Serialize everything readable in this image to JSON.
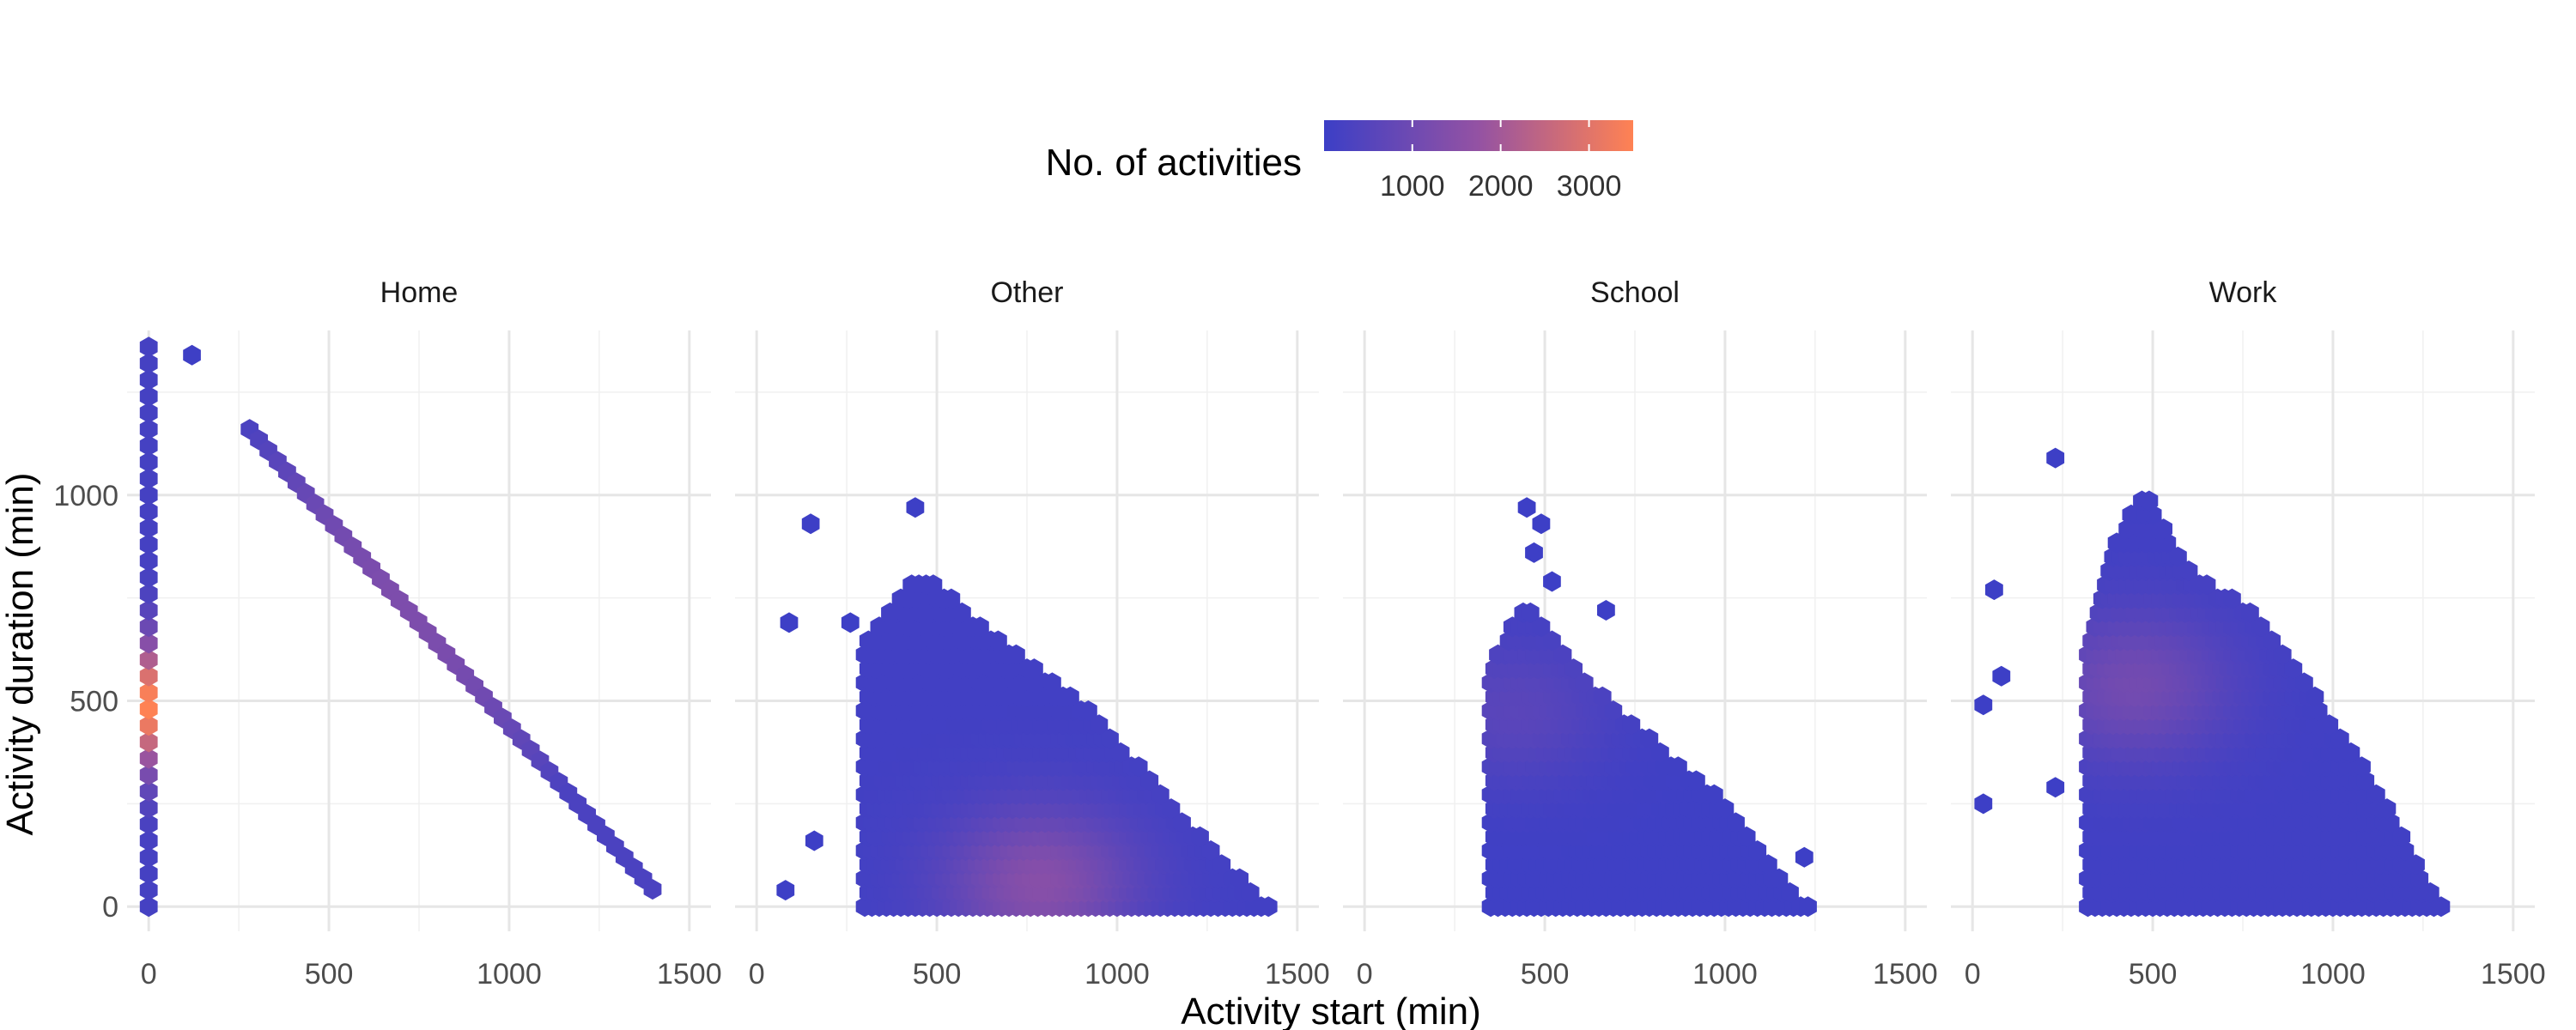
{
  "chart_data": {
    "type": "hexbin",
    "x_label": "Activity start (min)",
    "y_label": "Activity duration (min)",
    "x_range": [
      -60,
      1560
    ],
    "y_range": [
      -60,
      1400
    ],
    "x_ticks": [
      0,
      500,
      1000,
      1500
    ],
    "y_ticks": [
      0,
      500,
      1000
    ],
    "legend": {
      "title": "No. of activities",
      "position": "top",
      "range": [
        1,
        3500
      ],
      "ticks": [
        1000,
        2000,
        3000
      ],
      "color_low": "#3c3fc6",
      "color_mid": "#9452a3",
      "color_high": "#ff8253"
    },
    "panels": [
      {
        "label": "Home",
        "vertical_column": {
          "x": 0,
          "y_min": 0,
          "y_max": 1380,
          "step": 40,
          "peak_y": 490,
          "peak_count": 3500,
          "base_count": 180
        },
        "isolated_points": [
          {
            "x": 120,
            "y": 1340,
            "count": 40
          }
        ],
        "diagonal_line": {
          "x_start": 280,
          "x_end": 1420,
          "step": 26,
          "rule": "duration = 1440 - start",
          "count_low": 300,
          "count_high": 1300
        }
      },
      {
        "label": "Other",
        "mass": {
          "x_min": 300,
          "x_max": 1420,
          "upper_edge": [
            [
              300,
              640
            ],
            [
              450,
              820
            ],
            [
              600,
              700
            ],
            [
              900,
              500
            ],
            [
              1200,
              200
            ],
            [
              1420,
              0
            ]
          ],
          "hotspot": [
            800,
            60
          ],
          "hotspot_count": 1500,
          "base_count": 120
        },
        "isolated_points": [
          {
            "x": 150,
            "y": 930,
            "count": 20
          },
          {
            "x": 90,
            "y": 690,
            "count": 20
          },
          {
            "x": 160,
            "y": 160,
            "count": 20
          },
          {
            "x": 80,
            "y": 40,
            "count": 20
          },
          {
            "x": 260,
            "y": 690,
            "count": 20
          },
          {
            "x": 440,
            "y": 970,
            "count": 20
          }
        ]
      },
      {
        "label": "School",
        "mass": {
          "x_min": 350,
          "x_max": 1230,
          "upper_edge": [
            [
              350,
              600
            ],
            [
              450,
              740
            ],
            [
              600,
              560
            ],
            [
              800,
              400
            ],
            [
              1000,
              250
            ],
            [
              1120,
              120
            ],
            [
              1230,
              0
            ]
          ],
          "hotspot": [
            430,
            480
          ],
          "hotspot_count": 600,
          "base_count": 60
        },
        "isolated_points": [
          {
            "x": 450,
            "y": 970,
            "count": 20
          },
          {
            "x": 490,
            "y": 930,
            "count": 20
          },
          {
            "x": 470,
            "y": 860,
            "count": 20
          },
          {
            "x": 520,
            "y": 790,
            "count": 20
          },
          {
            "x": 670,
            "y": 720,
            "count": 20
          },
          {
            "x": 1220,
            "y": 120,
            "count": 20
          }
        ]
      },
      {
        "label": "Work",
        "mass": {
          "x_min": 320,
          "x_max": 1300,
          "upper_edge": [
            [
              320,
              640
            ],
            [
              400,
              900
            ],
            [
              480,
              1010
            ],
            [
              600,
              820
            ],
            [
              800,
              700
            ],
            [
              1000,
              450
            ],
            [
              1150,
              250
            ],
            [
              1300,
              0
            ]
          ],
          "hotspot": [
            460,
            540
          ],
          "hotspot_count": 1100,
          "base_count": 100
        },
        "isolated_points": [
          {
            "x": 230,
            "y": 1090,
            "count": 20
          },
          {
            "x": 60,
            "y": 770,
            "count": 20
          },
          {
            "x": 80,
            "y": 560,
            "count": 20
          },
          {
            "x": 30,
            "y": 490,
            "count": 20
          },
          {
            "x": 30,
            "y": 250,
            "count": 20
          },
          {
            "x": 230,
            "y": 290,
            "count": 20
          }
        ]
      }
    ]
  }
}
